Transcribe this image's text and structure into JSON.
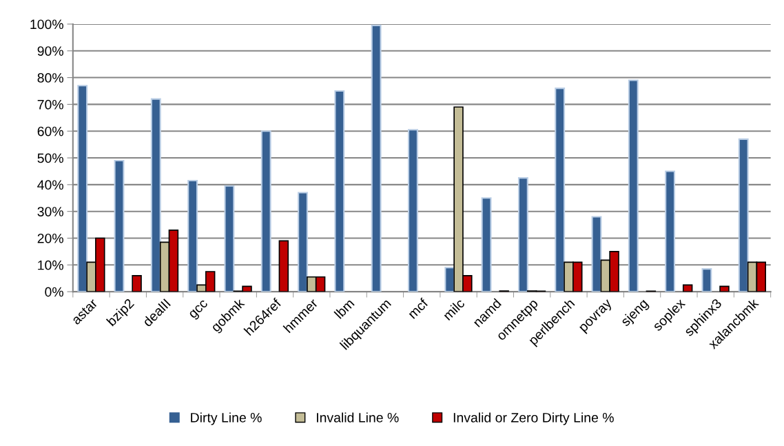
{
  "chart_data": {
    "type": "bar",
    "categories": [
      "astar",
      "bzip2",
      "dealII",
      "gcc",
      "gobmk",
      "h264ref",
      "hmmer",
      "lbm",
      "libquantum",
      "mcf",
      "milc",
      "namd",
      "omnetpp",
      "perlbench",
      "povray",
      "sjeng",
      "soplex",
      "sphinx3",
      "xalancbmk"
    ],
    "series": [
      {
        "name": "Dirty Line %",
        "color": "#366092",
        "values": [
          77,
          49,
          72,
          41.5,
          39.5,
          60,
          37,
          75,
          99.5,
          60.5,
          9,
          35,
          42.5,
          76,
          28,
          79,
          45,
          8.5,
          57
        ]
      },
      {
        "name": "Invalid Line %",
        "color": "#c4bd97",
        "values": [
          11,
          0,
          18.5,
          2.5,
          0.2,
          0,
          5.5,
          0,
          0,
          0,
          69,
          0,
          0.3,
          11,
          11.8,
          0,
          0,
          0,
          11
        ]
      },
      {
        "name": "Invalid or Zero Dirty Line %",
        "color": "#c00000",
        "values": [
          20,
          6,
          23,
          7.5,
          2,
          19,
          5.5,
          0,
          0,
          0,
          6,
          0.3,
          0.2,
          11,
          15,
          0.2,
          2.5,
          2,
          11
        ]
      }
    ],
    "ylim": [
      0,
      100
    ],
    "yticks": [
      {
        "value": 0,
        "label": "0%"
      },
      {
        "value": 10,
        "label": "10%"
      },
      {
        "value": 20,
        "label": "20%"
      },
      {
        "value": 30,
        "label": "30%"
      },
      {
        "value": 40,
        "label": "40%"
      },
      {
        "value": 50,
        "label": "50%"
      },
      {
        "value": 60,
        "label": "60%"
      },
      {
        "value": 70,
        "label": "70%"
      },
      {
        "value": 80,
        "label": "80%"
      },
      {
        "value": 90,
        "label": "90%"
      },
      {
        "value": 100,
        "label": "100%"
      }
    ],
    "grid": "y",
    "legend": "bottom"
  }
}
